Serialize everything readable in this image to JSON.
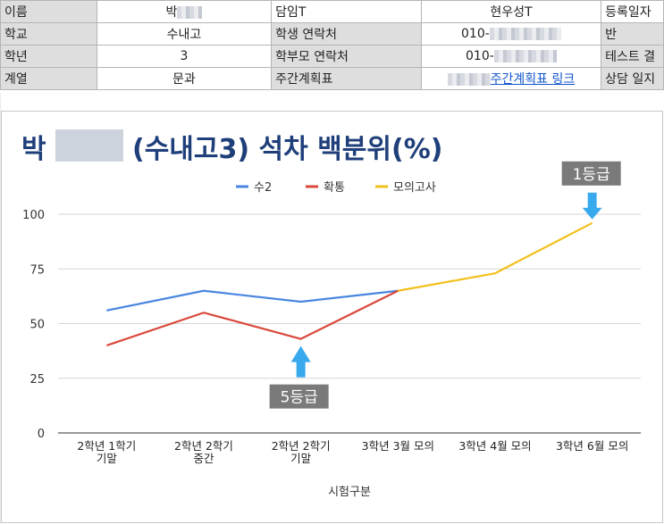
{
  "sheet": {
    "r1": {
      "c1": "이름",
      "c2": "박",
      "c3": "담임T",
      "c4": "현우성T",
      "c5": "등록일자"
    },
    "r2": {
      "c1": "학교",
      "c2": "수내고",
      "c3": "학생 연락처",
      "c4": "010-",
      "c5": "반"
    },
    "r3": {
      "c1": "학년",
      "c2": "3",
      "c3": "학부모 연락처",
      "c4": "010-",
      "c5": "테스트 결"
    },
    "r4": {
      "c1": "계열",
      "c2": "문과",
      "c3": "주간계획표",
      "c4": "주간계획표 링크",
      "c5": "상담 일지"
    }
  },
  "chart_data": {
    "type": "line",
    "title": "박 (수내고3) 석차 백분위(%)",
    "xlabel": "시험구분",
    "ylabel": "",
    "ylim": [
      0,
      100
    ],
    "yticks": [
      0,
      25,
      50,
      75,
      100
    ],
    "categories": [
      [
        "2학년 1학기",
        "기말"
      ],
      [
        "2학년 2학기",
        "중간"
      ],
      [
        "2학년 2학기",
        "기말"
      ],
      [
        "3학년 3월 모의"
      ],
      [
        "3학년 4월 모의"
      ],
      [
        "3학년 6월 모의"
      ]
    ],
    "legend_position": "top",
    "series": [
      {
        "name": "수2",
        "color": "#4a86e0",
        "values": [
          56,
          65,
          60,
          65,
          null,
          null
        ]
      },
      {
        "name": "확통",
        "color": "#d9483b",
        "values": [
          40,
          55,
          43,
          65,
          null,
          null
        ]
      },
      {
        "name": "모의고사",
        "color": "#f2c01e",
        "values": [
          null,
          null,
          null,
          65,
          73,
          96
        ]
      }
    ],
    "annotations": [
      {
        "text": "1등급",
        "category_index": 5,
        "value": 96,
        "arrow": "down"
      },
      {
        "text": "5등급",
        "category_index": 2,
        "value": 43,
        "arrow": "up"
      }
    ],
    "annotation_color": "#7a7a7a",
    "arrow_color": "#39a9ee",
    "title_color": "#1f3f7a"
  }
}
